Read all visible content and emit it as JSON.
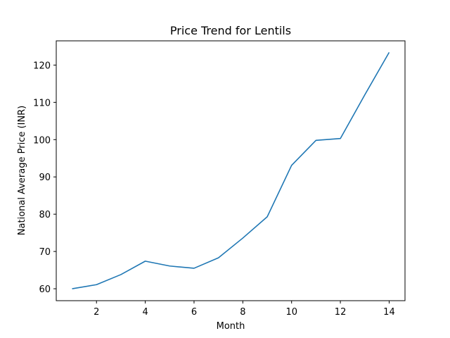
{
  "chart_data": {
    "type": "line",
    "title": "Price Trend for Lentils",
    "xlabel": "Month",
    "ylabel": "National Average Price (INR)",
    "xlim": [
      0.35,
      14.65
    ],
    "ylim": [
      56.8,
      126.5
    ],
    "xticks": [
      2,
      4,
      6,
      8,
      10,
      12,
      14
    ],
    "yticks": [
      60,
      70,
      80,
      90,
      100,
      110,
      120
    ],
    "grid": false,
    "series": [
      {
        "color": "#1f77b4",
        "x": [
          1,
          2,
          3,
          4,
          5,
          6,
          7,
          8,
          9,
          10,
          11,
          12,
          13,
          14
        ],
        "y": [
          60.0,
          61.1,
          63.8,
          67.4,
          66.1,
          65.5,
          68.3,
          73.6,
          79.3,
          93.1,
          99.8,
          100.3,
          112.0,
          123.4
        ]
      }
    ]
  }
}
